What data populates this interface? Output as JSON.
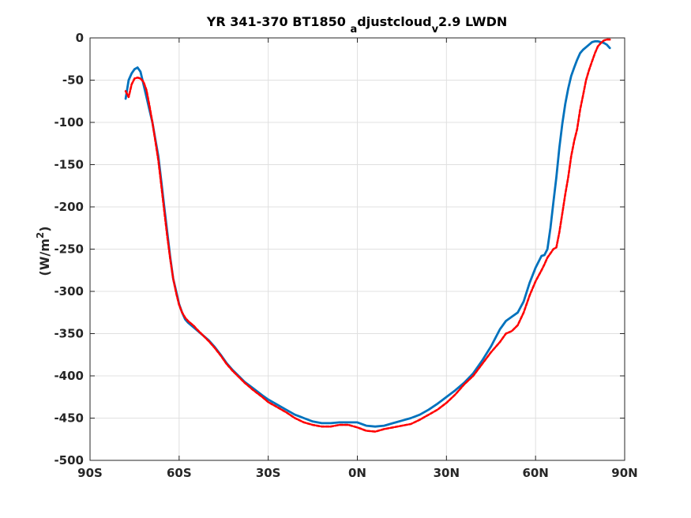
{
  "chart_data": {
    "type": "line",
    "title": "YR 341-370 BT1850",
    "title_sub1": "a",
    "title_mid": "djustcloud",
    "title_sub2": "v",
    "title_end": "2.9 LWDN",
    "ylabel": "(W/m",
    "ylabel_sup": "2",
    "ylabel_end": ")",
    "xlim": [
      -90,
      90
    ],
    "ylim": [
      -500,
      0
    ],
    "grid": true,
    "xticks": [
      -90,
      -60,
      -30,
      0,
      30,
      60,
      90
    ],
    "xtick_labels": [
      "90S",
      "60S",
      "30S",
      "0N",
      "30N",
      "60N",
      "90N"
    ],
    "yticks": [
      0,
      -50,
      -100,
      -150,
      -200,
      -250,
      -300,
      -350,
      -400,
      -450,
      -500
    ],
    "ytick_labels": [
      "0",
      "-50",
      "-100",
      "-150",
      "-200",
      "-250",
      "-300",
      "-350",
      "-400",
      "-450",
      "-500"
    ],
    "series": [
      {
        "color": "#0072bd",
        "style": "solid",
        "x": [
          -78,
          -77,
          -76,
          -75,
          -74,
          -73,
          -72,
          -71,
          -70,
          -69,
          -68,
          -67,
          -66,
          -65,
          -64,
          -63,
          -62,
          -61,
          -60,
          -59,
          -58,
          -57,
          -56,
          -55,
          -54,
          -52,
          -50,
          -48,
          -46,
          -44,
          -42,
          -40,
          -38,
          -35,
          -32,
          -30,
          -27,
          -24,
          -21,
          -18,
          -15,
          -12,
          -9,
          -6,
          -3,
          0,
          3,
          6,
          9,
          12,
          15,
          18,
          21,
          24,
          27,
          30,
          33,
          36,
          39,
          42,
          45,
          48,
          50,
          52,
          54,
          56,
          58,
          60,
          62,
          63,
          64,
          65,
          66,
          67,
          68,
          69,
          70,
          71,
          72,
          73,
          74,
          75,
          76,
          77,
          78,
          79,
          80,
          81,
          82,
          83,
          84,
          85
        ],
        "y": [
          -72,
          -50,
          -42,
          -37,
          -35,
          -40,
          -55,
          -70,
          -85,
          -100,
          -120,
          -140,
          -170,
          -200,
          -230,
          -260,
          -285,
          -300,
          -315,
          -325,
          -333,
          -337,
          -340,
          -343,
          -346,
          -352,
          -358,
          -366,
          -375,
          -385,
          -393,
          -400,
          -407,
          -415,
          -423,
          -428,
          -434,
          -440,
          -446,
          -450,
          -454,
          -456,
          -456,
          -455,
          -455,
          -455,
          -459,
          -460,
          -459,
          -456,
          -453,
          -450,
          -446,
          -440,
          -433,
          -425,
          -417,
          -408,
          -397,
          -382,
          -365,
          -345,
          -335,
          -330,
          -325,
          -312,
          -290,
          -272,
          -258,
          -257,
          -250,
          -225,
          -195,
          -165,
          -130,
          -102,
          -78,
          -60,
          -45,
          -35,
          -26,
          -18,
          -14,
          -11,
          -8,
          -5,
          -4,
          -4,
          -5,
          -6,
          -8,
          -12
        ]
      },
      {
        "color": "#ff0000",
        "style": "dashed",
        "x": [
          -78,
          -77,
          -76,
          -75,
          -74,
          -73,
          -72,
          -71,
          -70,
          -69,
          -68,
          -67,
          -66,
          -65,
          -64,
          -63,
          -62,
          -61,
          -60,
          -59,
          -58,
          -57,
          -56,
          -55,
          -54,
          -52,
          -50,
          -48,
          -46,
          -44,
          -42,
          -40,
          -38,
          -35,
          -32,
          -30,
          -27,
          -24,
          -21,
          -18,
          -15,
          -12,
          -9,
          -6,
          -3,
          0,
          3,
          6,
          9,
          12,
          15,
          18,
          21,
          24,
          27,
          30,
          33,
          36,
          39,
          42,
          45,
          48,
          50,
          52,
          54,
          56,
          58,
          60,
          62,
          63,
          64,
          65,
          66,
          67,
          68,
          69,
          70,
          71,
          72,
          73,
          74,
          75,
          76,
          77,
          78,
          79,
          80,
          81,
          82,
          83,
          84,
          85
        ],
        "y": [
          -63,
          -70,
          -55,
          -48,
          -47,
          -48,
          -52,
          -62,
          -80,
          -100,
          -122,
          -145,
          -175,
          -205,
          -235,
          -262,
          -285,
          -302,
          -316,
          -325,
          -331,
          -335,
          -338,
          -341,
          -345,
          -352,
          -359,
          -367,
          -376,
          -386,
          -394,
          -401,
          -408,
          -417,
          -425,
          -431,
          -437,
          -443,
          -450,
          -455,
          -458,
          -460,
          -460,
          -458,
          -458,
          -461,
          -465,
          -466,
          -463,
          -461,
          -459,
          -457,
          -452,
          -446,
          -440,
          -432,
          -422,
          -410,
          -400,
          -386,
          -372,
          -360,
          -350,
          -347,
          -340,
          -325,
          -305,
          -288,
          -275,
          -268,
          -260,
          -255,
          -250,
          -248,
          -230,
          -208,
          -185,
          -165,
          -140,
          -122,
          -108,
          -85,
          -68,
          -50,
          -38,
          -28,
          -18,
          -10,
          -6,
          -3,
          -2,
          -2
        ]
      }
    ]
  }
}
